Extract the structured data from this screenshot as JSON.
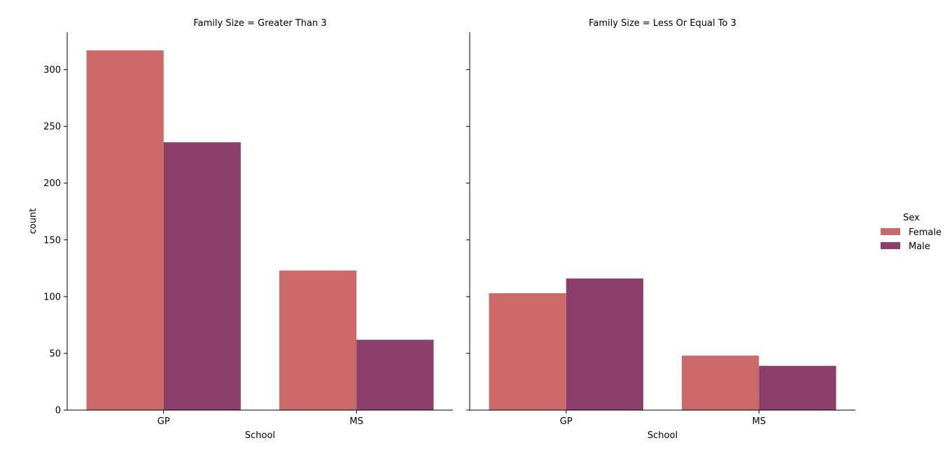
{
  "chart_data": {
    "type": "bar",
    "categories": [
      "GP",
      "MS"
    ],
    "xlabel": "School",
    "ylabel": "count",
    "ylim": [
      0,
      333
    ],
    "yticks": [
      0,
      50,
      100,
      150,
      200,
      250,
      300
    ],
    "grid": false,
    "legend": {
      "title": "Sex",
      "placement": "right",
      "entries": [
        "Female",
        "Male"
      ]
    },
    "series_colors": {
      "Female": "#cc6a69",
      "Male": "#8c3f6b"
    },
    "panels": [
      {
        "title": "Family Size = Greater Than 3",
        "series": [
          {
            "name": "Female",
            "values": [
              317,
              123
            ]
          },
          {
            "name": "Male",
            "values": [
              236,
              62
            ]
          }
        ]
      },
      {
        "title": "Family Size = Less Or Equal To 3",
        "series": [
          {
            "name": "Female",
            "values": [
              103,
              48
            ]
          },
          {
            "name": "Male",
            "values": [
              116,
              39
            ]
          }
        ]
      }
    ]
  }
}
